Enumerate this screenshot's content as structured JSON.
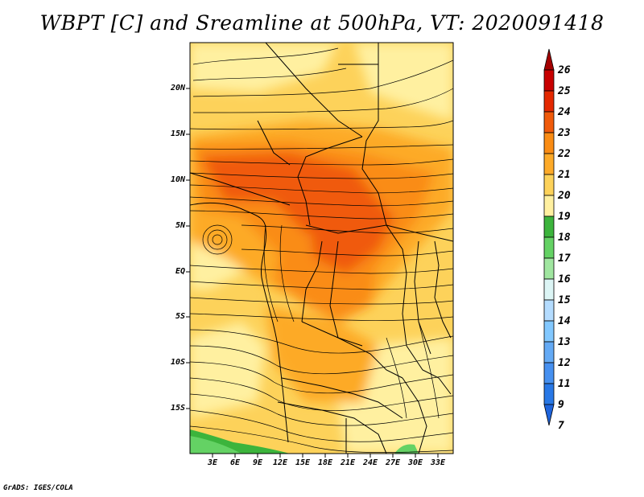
{
  "title": "WBPT [C] and Sreamline at 500hPa, VT: 2020091418",
  "footer": "GrADS: IGES/COLA",
  "lat_labels": [
    "20N",
    "15N",
    "10N",
    "5N",
    "EQ",
    "5S",
    "10S",
    "15S"
  ],
  "lon_labels": [
    "3E",
    "6E",
    "9E",
    "12E",
    "15E",
    "18E",
    "21E",
    "24E",
    "27E",
    "30E",
    "33E"
  ],
  "colorbar": {
    "labels": [
      "26",
      "25",
      "24",
      "23",
      "22",
      "21",
      "20",
      "19",
      "18",
      "17",
      "16",
      "15",
      "14",
      "13",
      "12",
      "11",
      "9",
      "7"
    ],
    "colors": [
      "#a40000",
      "#c80000",
      "#e42800",
      "#f05a0a",
      "#fa8c14",
      "#fdaa28",
      "#fdd25a",
      "#fff0a0",
      "#3cb43c",
      "#64d264",
      "#a0e6a0",
      "#dcf5f5",
      "#b4dcff",
      "#82c8ff",
      "#64aaf5",
      "#4690f0",
      "#2878e6",
      "#1e64dc"
    ]
  }
}
